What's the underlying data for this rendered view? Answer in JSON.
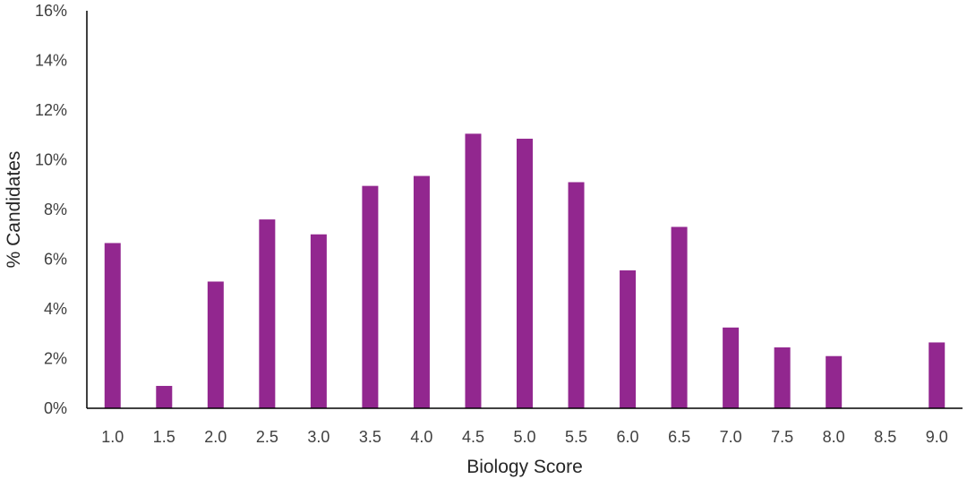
{
  "chart_data": {
    "type": "bar",
    "title": "",
    "xlabel": "Biology Score",
    "ylabel": "% Candidates",
    "categories": [
      "1.0",
      "1.5",
      "2.0",
      "2.5",
      "3.0",
      "3.5",
      "4.0",
      "4.5",
      "5.0",
      "5.5",
      "6.0",
      "6.5",
      "7.0",
      "7.5",
      "8.0",
      "8.5",
      "9.0"
    ],
    "values": [
      6.65,
      0.9,
      5.1,
      7.6,
      7.0,
      8.95,
      9.35,
      11.05,
      10.85,
      9.1,
      5.55,
      7.3,
      3.25,
      2.45,
      2.1,
      0,
      2.65
    ],
    "ylim": [
      0,
      16
    ],
    "yticks": [
      0,
      2,
      4,
      6,
      8,
      10,
      12,
      14,
      16
    ],
    "ytick_labels": [
      "0%",
      "2%",
      "4%",
      "6%",
      "8%",
      "10%",
      "12%",
      "14%",
      "16%"
    ],
    "bar_color": "#92278F",
    "grid": false,
    "legend": false
  }
}
